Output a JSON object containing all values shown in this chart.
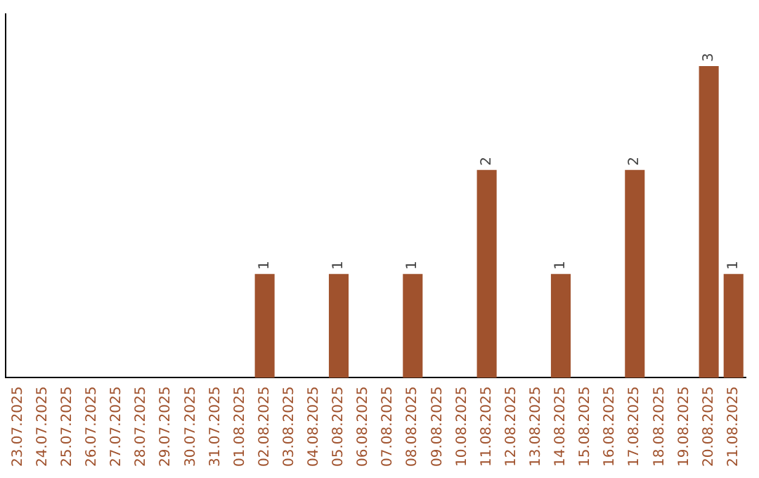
{
  "chart_data": {
    "type": "bar",
    "categories": [
      "23.07.2025",
      "24.07.2025",
      "25.07.2025",
      "26.07.2025",
      "27.07.2025",
      "28.07.2025",
      "29.07.2025",
      "30.07.2025",
      "31.07.2025",
      "01.08.2025",
      "02.08.2025",
      "03.08.2025",
      "04.08.2025",
      "05.08.2025",
      "06.08.2025",
      "07.08.2025",
      "08.08.2025",
      "09.08.2025",
      "10.08.2025",
      "11.08.2025",
      "12.08.2025",
      "13.08.2025",
      "14.08.2025",
      "15.08.2025",
      "16.08.2025",
      "17.08.2025",
      "18.08.2025",
      "19.08.2025",
      "20.08.2025",
      "21.08.2025"
    ],
    "values": [
      0,
      0,
      0,
      0,
      0,
      0,
      0,
      0,
      0,
      0,
      1,
      0,
      0,
      1,
      0,
      0,
      1,
      0,
      0,
      2,
      0,
      0,
      1,
      0,
      0,
      2,
      0,
      0,
      3,
      1
    ],
    "value_labels": [
      null,
      null,
      null,
      null,
      null,
      null,
      null,
      null,
      null,
      null,
      "1",
      null,
      null,
      "1",
      null,
      null,
      "1",
      null,
      null,
      "2",
      null,
      null,
      "1",
      null,
      null,
      "2",
      null,
      null,
      "3",
      "1"
    ],
    "color": "#a0522d",
    "grid": false,
    "legend": false,
    "tick_labels": "x"
  }
}
